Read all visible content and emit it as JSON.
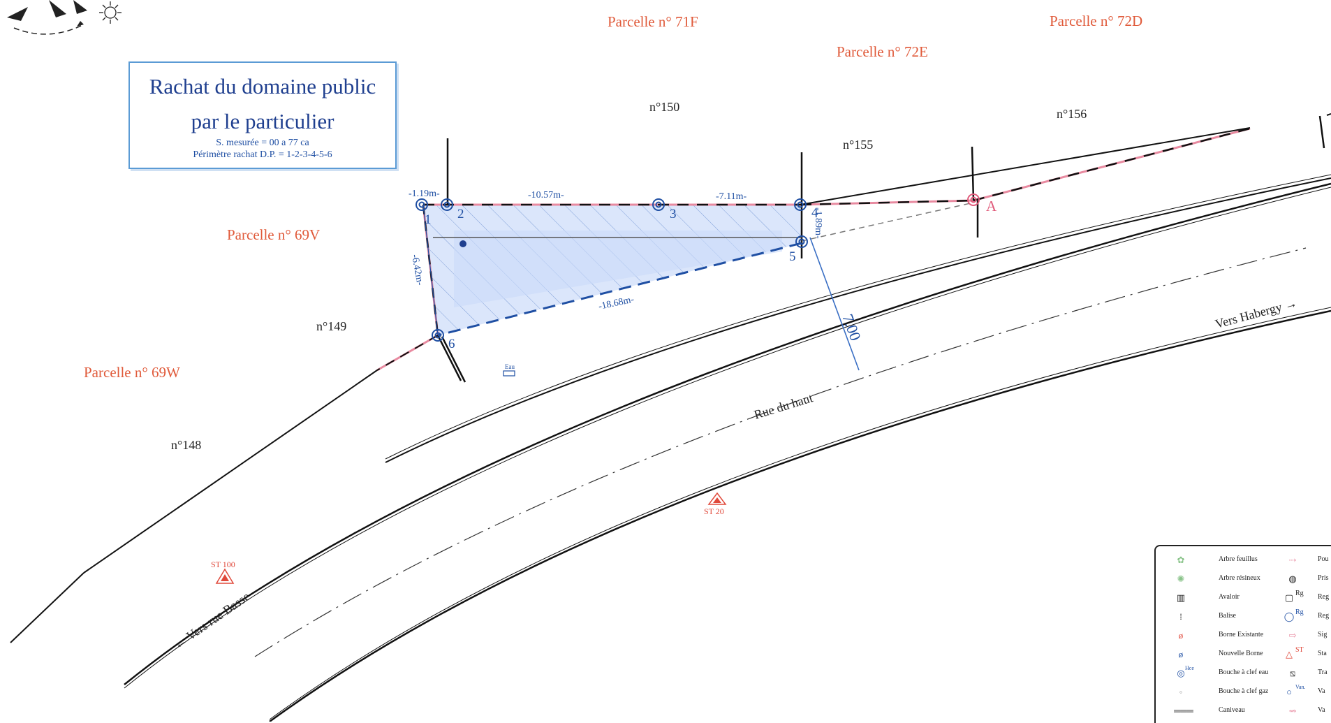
{
  "title": {
    "line1": "Rachat du domaine public",
    "line2": "par le particulier",
    "surface": "S. mesurée = 00 a 77 ca",
    "perimeter": "Périmètre rachat D.P. = 1-2-3-4-5-6"
  },
  "parcels": {
    "p71F": "Parcelle n° 71F",
    "p72D": "Parcelle n° 72D",
    "p72E": "Parcelle n° 72E",
    "p69V": "Parcelle n° 69V",
    "p69W": "Parcelle n° 69W"
  },
  "numbers": {
    "n150": "n°150",
    "n155": "n°155",
    "n156": "n°156",
    "n149": "n°149",
    "n148": "n°148"
  },
  "points": {
    "p1": "1",
    "p2": "2",
    "p3": "3",
    "p4": "4",
    "p5": "5",
    "p6": "6",
    "pA": "A"
  },
  "dimensions": {
    "d12": "-1.19m-",
    "d23": "-10.57m-",
    "d34": "-7.11m-",
    "d45": "-1.89m-",
    "d61": "-6.42m-",
    "d56": "-18.68m-",
    "road_width": "7.00"
  },
  "roads": {
    "haut": "Rue du haut",
    "habergy": "Vers Habergy →",
    "basse": "← Vers rue Basse"
  },
  "markers": {
    "st100": "ST 100",
    "st20": "ST 20",
    "eau": "Eau"
  },
  "legend": {
    "left": [
      {
        "icon": "leafy-tree-icon",
        "label": "Arbre feuillus"
      },
      {
        "icon": "conifer-tree-icon",
        "label": "Arbre résineux"
      },
      {
        "icon": "gully-icon",
        "label": "Avaloir"
      },
      {
        "icon": "beacon-icon",
        "label": "Balise"
      },
      {
        "icon": "existing-marker-icon",
        "label": "Borne Existante"
      },
      {
        "icon": "new-marker-icon",
        "label": "Nouvelle Borne"
      },
      {
        "icon": "water-key-icon",
        "label": "Bouche à clef eau"
      },
      {
        "icon": "gas-key-icon",
        "label": "Bouche à clef gaz"
      },
      {
        "icon": "gutter-icon",
        "label": "Caniveau"
      }
    ],
    "right": [
      {
        "icon": "pole-icon",
        "label": "Pou"
      },
      {
        "icon": "outlet-icon",
        "label": "Pris"
      },
      {
        "icon": "manhole-square-icon",
        "label": "Reg"
      },
      {
        "icon": "manhole-round-icon",
        "label": "Reg"
      },
      {
        "icon": "sign-icon",
        "label": "Sig"
      },
      {
        "icon": "station-icon",
        "label": "Sta"
      },
      {
        "icon": "transformer-icon",
        "label": "Tra"
      },
      {
        "icon": "valve-icon",
        "label": "Va"
      },
      {
        "icon": "valve-gas-icon",
        "label": "Va"
      }
    ],
    "tags": {
      "rg": "Rg",
      "st": "ST",
      "hce": "Hce",
      "vanne": "Van."
    }
  }
}
